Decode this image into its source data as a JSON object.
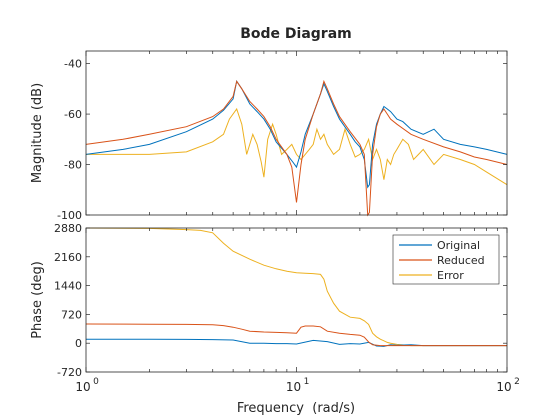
{
  "title": "Bode Diagram",
  "colors": {
    "Original": "#0072BD",
    "Reduced": "#D95319",
    "Error": "#EDB120",
    "axes": "#262626",
    "background": "#ffffff"
  },
  "chart_data": [
    {
      "type": "line",
      "title": "Bode Diagram",
      "xlabel": "",
      "ylabel": "Magnitude (dB)",
      "xscale": "log",
      "xlim": [
        1,
        100
      ],
      "ylim": [
        -100,
        -35
      ],
      "yticks": [
        -100,
        -80,
        -60,
        -40
      ],
      "ytick_labels": [
        "-100",
        "-80",
        "-60",
        "-40"
      ],
      "grid": false,
      "series": [
        {
          "name": "Original",
          "x": [
            1,
            1.5,
            2,
            3,
            4,
            4.5,
            5,
            5.2,
            5.5,
            6,
            6.5,
            7,
            7.5,
            8,
            9,
            9.6,
            10,
            10.5,
            11,
            12,
            13,
            13.5,
            14,
            15,
            16,
            18,
            19,
            20,
            21,
            21.8,
            22.2,
            23,
            24,
            25,
            26,
            27,
            28,
            30,
            32,
            35,
            40,
            45,
            50,
            60,
            70,
            80,
            100
          ],
          "y": [
            -76,
            -74,
            -72,
            -67,
            -62,
            -58.5,
            -54,
            -47,
            -50,
            -56,
            -59,
            -62,
            -66,
            -71,
            -76,
            -79,
            -81,
            -75,
            -68,
            -60,
            -52,
            -48,
            -51,
            -57,
            -62,
            -68,
            -71,
            -73,
            -78,
            -89,
            -88,
            -72,
            -64,
            -60,
            -57,
            -58,
            -59,
            -62,
            -63,
            -66,
            -68,
            -66,
            -70,
            -72,
            -73,
            -74,
            -76
          ]
        },
        {
          "name": "Reduced",
          "x": [
            1,
            1.5,
            2,
            3,
            4,
            4.5,
            5,
            5.2,
            5.5,
            6,
            6.5,
            7,
            7.5,
            8,
            9,
            9.5,
            10,
            10.5,
            11,
            12,
            13,
            13.5,
            14,
            15,
            16,
            18,
            20,
            21,
            21.8,
            22.2,
            23,
            24,
            25,
            26,
            27,
            28,
            30,
            35,
            40,
            50,
            60,
            70,
            80,
            100
          ],
          "y": [
            -72,
            -70,
            -68,
            -65,
            -61,
            -58,
            -53,
            -47,
            -50,
            -55,
            -58,
            -61,
            -65,
            -70,
            -76,
            -81,
            -95,
            -80,
            -70,
            -60,
            -52,
            -47,
            -50,
            -56,
            -61,
            -67,
            -72,
            -76,
            -100,
            -99,
            -76,
            -65,
            -60,
            -58,
            -60,
            -62,
            -64,
            -68,
            -70,
            -73,
            -75,
            -77,
            -78,
            -80
          ]
        },
        {
          "name": "Error",
          "x": [
            1,
            2,
            3,
            4,
            4.5,
            4.8,
            5.2,
            5.5,
            5.8,
            6.2,
            6.5,
            6.8,
            7,
            7.3,
            7.7,
            8,
            8.5,
            9,
            9.5,
            10,
            10.5,
            11,
            11.5,
            12,
            12.5,
            13,
            13.5,
            14,
            15,
            16,
            17,
            18,
            19,
            20,
            21,
            22,
            23,
            24,
            25,
            26,
            27,
            28,
            29,
            30,
            32,
            34,
            36,
            38,
            40,
            45,
            50,
            60,
            70,
            80,
            100
          ],
          "y": [
            -76,
            -76,
            -75,
            -71,
            -68,
            -62,
            -58,
            -64,
            -76,
            -68,
            -72,
            -79,
            -85,
            -70,
            -64,
            -68,
            -76,
            -74,
            -72,
            -76,
            -78,
            -76,
            -74,
            -72,
            -66,
            -70,
            -68,
            -72,
            -76,
            -74,
            -66,
            -72,
            -77,
            -76,
            -74,
            -70,
            -78,
            -74,
            -78,
            -86,
            -78,
            -80,
            -76,
            -74,
            -70,
            -72,
            -78,
            -76,
            -74,
            -80,
            -76,
            -78,
            -80,
            -83,
            -88
          ]
        }
      ]
    },
    {
      "type": "line",
      "title": "",
      "xlabel": "Frequency  (rad/s)",
      "ylabel": "Phase (deg)",
      "xscale": "log",
      "xlim": [
        1,
        100
      ],
      "xticks": [
        1,
        10,
        100
      ],
      "xtick_labels": [
        "10",
        "10",
        "10"
      ],
      "xtick_exponents": [
        "0",
        "1",
        "2"
      ],
      "ylim": [
        -720,
        2880
      ],
      "yticks": [
        -720,
        0,
        720,
        1440,
        2160,
        2880
      ],
      "ytick_labels": [
        "-720",
        "0",
        "720",
        "1440",
        "2160",
        "2880"
      ],
      "grid": false,
      "legend": "top-right",
      "series": [
        {
          "name": "Original",
          "x": [
            1,
            2,
            3,
            4,
            5,
            6,
            7,
            8,
            9,
            10,
            12,
            14,
            16,
            18,
            20,
            22,
            24,
            26,
            28,
            30,
            35,
            40,
            50,
            60,
            70,
            80,
            100
          ],
          "y": [
            100,
            100,
            95,
            90,
            80,
            0,
            0,
            -10,
            -10,
            -20,
            70,
            40,
            -30,
            -10,
            -20,
            20,
            -70,
            -80,
            -40,
            -50,
            -40,
            -60,
            -60,
            -60,
            -60,
            -60,
            -60
          ]
        },
        {
          "name": "Reduced",
          "x": [
            1,
            2,
            3,
            4,
            4.5,
            5,
            5.5,
            6,
            7,
            8,
            9,
            10,
            10.5,
            11,
            12,
            13,
            14,
            16,
            18,
            20,
            21,
            22,
            23,
            25,
            30,
            40,
            50,
            60,
            70,
            100
          ],
          "y": [
            480,
            475,
            470,
            460,
            440,
            400,
            350,
            300,
            280,
            270,
            260,
            250,
            400,
            430,
            430,
            410,
            300,
            250,
            220,
            200,
            150,
            30,
            -40,
            -60,
            -60,
            -60,
            -60,
            -60,
            -60,
            -60
          ]
        },
        {
          "name": "Error",
          "x": [
            1,
            2,
            3,
            3.5,
            4,
            4.5,
            5,
            6,
            7,
            8,
            9,
            10,
            11,
            12,
            13,
            13.5,
            14,
            15,
            16,
            18,
            20,
            21,
            22,
            23,
            24,
            25,
            26,
            27,
            28,
            30,
            35,
            40,
            50,
            60,
            70,
            100
          ],
          "y": [
            2880,
            2870,
            2840,
            2820,
            2760,
            2500,
            2300,
            2100,
            1950,
            1860,
            1800,
            1760,
            1750,
            1740,
            1720,
            1600,
            1300,
            1000,
            800,
            650,
            620,
            560,
            470,
            250,
            160,
            100,
            60,
            20,
            0,
            -30,
            -60,
            -60,
            -60,
            -60,
            -60,
            -60
          ]
        }
      ]
    }
  ]
}
